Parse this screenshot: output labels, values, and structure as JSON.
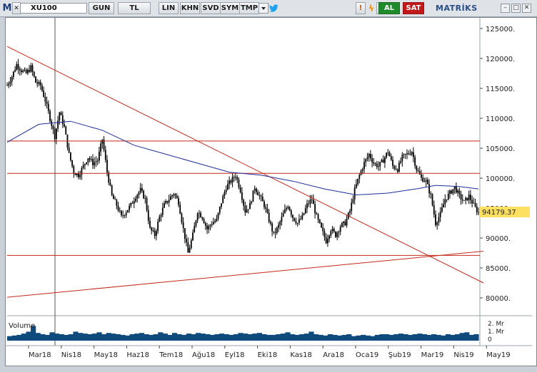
{
  "toolbar": {
    "logo": "M",
    "symbol": "XU100",
    "buttons": [
      "GUN",
      "TL",
      "LIN",
      "KHN",
      "SVD",
      "SYM",
      "TMP"
    ],
    "buy_label": "AL",
    "sell_label": "SAT",
    "brand": "MATRİKS"
  },
  "price_label": "94179.37",
  "volume_label": "Volume",
  "colors": {
    "candles": "#000000",
    "ma": "#1c2d9b",
    "lines": "#c4291b",
    "volume": "#0f4a7d",
    "price_marker": "#fde060"
  },
  "chart_data": {
    "type": "candlestick",
    "y_ticks": [
      125000,
      120000,
      115000,
      110000,
      105000,
      100000,
      95000,
      90000,
      85000,
      80000
    ],
    "x_ticks": [
      "Mar18",
      "Nis18",
      "May18",
      "Haz18",
      "Tem18",
      "Ağu18",
      "Eyl18",
      "Eki18",
      "Kas18",
      "Ara18",
      "Oca19",
      "Şub19",
      "Mar19",
      "Nis19",
      "May19"
    ],
    "volume_ticks": [
      "2. Mr",
      "1. Mr",
      "0"
    ],
    "ylim": [
      77000,
      127000
    ],
    "last_price": 94179.37,
    "close_path": [
      [
        0,
        115500
      ],
      [
        3,
        117000
      ],
      [
        6,
        119000
      ],
      [
        9,
        118000
      ],
      [
        12,
        117500
      ],
      [
        15,
        118500
      ],
      [
        18,
        116000
      ],
      [
        21,
        115500
      ],
      [
        24,
        113000
      ],
      [
        27,
        110000
      ],
      [
        30,
        107000
      ],
      [
        33,
        111000
      ],
      [
        36,
        108500
      ],
      [
        39,
        104000
      ],
      [
        42,
        101000
      ],
      [
        45,
        100500
      ],
      [
        48,
        102000
      ],
      [
        51,
        103500
      ],
      [
        54,
        102500
      ],
      [
        57,
        103000
      ],
      [
        60,
        106500
      ],
      [
        63,
        101000
      ],
      [
        66,
        97000
      ],
      [
        69,
        95500
      ],
      [
        72,
        93500
      ],
      [
        75,
        94500
      ],
      [
        78,
        95500
      ],
      [
        81,
        97000
      ],
      [
        84,
        98000
      ],
      [
        87,
        96500
      ],
      [
        90,
        91500
      ],
      [
        93,
        90500
      ],
      [
        96,
        93500
      ],
      [
        99,
        95500
      ],
      [
        102,
        96500
      ],
      [
        105,
        97500
      ],
      [
        108,
        96000
      ],
      [
        111,
        91500
      ],
      [
        114,
        87500
      ],
      [
        117,
        90500
      ],
      [
        120,
        94500
      ],
      [
        123,
        93500
      ],
      [
        126,
        91500
      ],
      [
        129,
        92500
      ],
      [
        132,
        93000
      ],
      [
        135,
        96000
      ],
      [
        138,
        98500
      ],
      [
        141,
        99500
      ],
      [
        144,
        100500
      ],
      [
        147,
        98000
      ],
      [
        150,
        94500
      ],
      [
        153,
        95500
      ],
      [
        156,
        98500
      ],
      [
        159,
        97000
      ],
      [
        162,
        95500
      ],
      [
        165,
        93000
      ],
      [
        168,
        90500
      ],
      [
        171,
        92000
      ],
      [
        174,
        94000
      ],
      [
        177,
        95500
      ],
      [
        180,
        93500
      ],
      [
        183,
        92500
      ],
      [
        186,
        93500
      ],
      [
        189,
        95500
      ],
      [
        192,
        96500
      ],
      [
        195,
        93500
      ],
      [
        198,
        91500
      ],
      [
        201,
        89500
      ],
      [
        204,
        91500
      ],
      [
        207,
        90500
      ],
      [
        210,
        92000
      ],
      [
        213,
        92500
      ],
      [
        216,
        94500
      ],
      [
        219,
        98000
      ],
      [
        222,
        100500
      ],
      [
        225,
        102500
      ],
      [
        228,
        104000
      ],
      [
        231,
        102500
      ],
      [
        234,
        102000
      ],
      [
        237,
        103000
      ],
      [
        240,
        104500
      ],
      [
        243,
        102000
      ],
      [
        246,
        101500
      ],
      [
        249,
        103500
      ],
      [
        252,
        104000
      ],
      [
        255,
        104500
      ],
      [
        258,
        101500
      ],
      [
        261,
        100000
      ],
      [
        264,
        99500
      ],
      [
        267,
        97000
      ],
      [
        270,
        92500
      ],
      [
        273,
        94000
      ],
      [
        276,
        96500
      ],
      [
        279,
        97500
      ],
      [
        282,
        98500
      ],
      [
        285,
        97000
      ],
      [
        288,
        96000
      ],
      [
        291,
        97000
      ],
      [
        294,
        95500
      ],
      [
        297,
        94179
      ]
    ],
    "moving_average": [
      [
        0,
        106000
      ],
      [
        20,
        109000
      ],
      [
        40,
        109500
      ],
      [
        60,
        108000
      ],
      [
        80,
        105500
      ],
      [
        100,
        104000
      ],
      [
        120,
        102500
      ],
      [
        140,
        101000
      ],
      [
        160,
        100500
      ],
      [
        180,
        99500
      ],
      [
        200,
        98200
      ],
      [
        220,
        97200
      ],
      [
        240,
        97500
      ],
      [
        260,
        98300
      ],
      [
        270,
        98800
      ],
      [
        285,
        98600
      ],
      [
        297,
        98200
      ]
    ],
    "horizontal_lines": [
      106200,
      100800,
      87100
    ],
    "trend_lines": [
      [
        [
          0,
          122000
        ],
        [
          297,
          82500
        ]
      ],
      [
        [
          0,
          80100
        ],
        [
          297,
          87800
        ]
      ]
    ],
    "volume": [
      0.7,
      0.8,
      0.9,
      1.1,
      1.4,
      2.3,
      1.2,
      1.0,
      0.9,
      1.3,
      1.1,
      1.0,
      0.9,
      1.0,
      1.4,
      1.2,
      1.1,
      1.0,
      1.1,
      1.3,
      1.0,
      1.2,
      1.1,
      1.0,
      0.9,
      0.8,
      1.0,
      1.1,
      1.2,
      1.0,
      0.9,
      1.0,
      1.3,
      1.1,
      0.9,
      1.2,
      1.0,
      0.9,
      1.1,
      1.0,
      1.2,
      1.1,
      1.0,
      0.9,
      1.0,
      1.1,
      1.0,
      0.9,
      1.0,
      1.2,
      1.1,
      1.0,
      1.1,
      1.2,
      1.0,
      0.9,
      0.9,
      1.0,
      1.1,
      1.3,
      1.0,
      0.9,
      1.0,
      1.1,
      1.4,
      1.0,
      0.9,
      0.8,
      1.0,
      0.9,
      0.8,
      0.9,
      1.0,
      0.7,
      0.8,
      0.9,
      0.8,
      0.7,
      0.9,
      1.0,
      1.0,
      0.9,
      1.0,
      1.1,
      1.0,
      0.9,
      1.0,
      1.1,
      1.0,
      0.9,
      1.0,
      0.9,
      0.8,
      1.0,
      0.9,
      1.0,
      1.2,
      1.3,
      0.9,
      1.0
    ]
  }
}
